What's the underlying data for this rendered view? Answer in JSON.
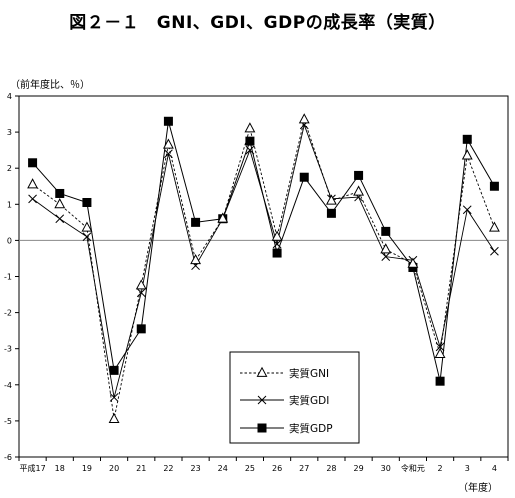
{
  "chart_data": {
    "type": "line",
    "title": "図２－１　GNI、GDI、GDPの成長率（実質）",
    "ylabel": "（前年度比、％）",
    "xlabel": "（年度）",
    "categories": [
      "平成17",
      "18",
      "19",
      "20",
      "21",
      "22",
      "23",
      "24",
      "25",
      "26",
      "27",
      "28",
      "29",
      "30",
      "令和元",
      "2",
      "3",
      "4"
    ],
    "ylim": [
      -6,
      4
    ],
    "yticks": [
      -6,
      -5,
      -4,
      -3,
      -2,
      -1,
      0,
      1,
      2,
      3,
      4
    ],
    "grid": false,
    "legend_position": "lower-center",
    "series": [
      {
        "name": "実質GNI",
        "marker": "triangle",
        "line": "dashed",
        "values": [
          1.55,
          1.0,
          0.35,
          -4.95,
          -1.25,
          2.65,
          -0.55,
          0.6,
          3.1,
          0.1,
          3.35,
          1.1,
          1.35,
          -0.25,
          -0.65,
          -3.15,
          2.35,
          0.35
        ]
      },
      {
        "name": "実質GDI",
        "marker": "x",
        "line": "solid",
        "values": [
          1.15,
          0.6,
          0.1,
          -4.35,
          -1.45,
          2.4,
          -0.7,
          0.6,
          2.5,
          -0.1,
          3.2,
          1.15,
          1.2,
          -0.45,
          -0.55,
          -2.95,
          0.85,
          -0.3
        ]
      },
      {
        "name": "実質GDP",
        "marker": "square",
        "line": "solid",
        "values": [
          2.15,
          1.3,
          1.05,
          -3.6,
          -2.45,
          3.3,
          0.5,
          0.6,
          2.75,
          -0.35,
          1.75,
          0.75,
          1.8,
          0.25,
          -0.75,
          -3.9,
          2.8,
          1.5
        ]
      }
    ]
  }
}
